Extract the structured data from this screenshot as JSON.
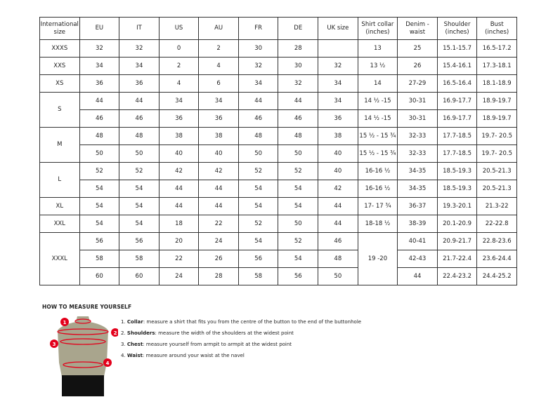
{
  "table": {
    "headers": [
      "International size",
      "EU",
      "IT",
      "US",
      "AU",
      "FR",
      "DE",
      "UK size",
      "Shirt collar (inches)",
      "Denim - waist",
      "Shoulder (inches)",
      "Bust (inches)"
    ],
    "rows": [
      {
        "size": "XXXS",
        "cells": [
          "32",
          "32",
          "0",
          "2",
          "30",
          "28",
          ""
        ],
        "collar": "13",
        "rest": [
          "25",
          "15.1-15.7",
          "16.5-17.2"
        ]
      },
      {
        "size": "XXS",
        "cells": [
          "34",
          "34",
          "2",
          "4",
          "32",
          "30",
          "32"
        ],
        "collar": "13 ½",
        "rest": [
          "26",
          "15.4-16.1",
          "17.3-18.1"
        ]
      },
      {
        "size": "XS",
        "cells": [
          "36",
          "36",
          "4",
          "6",
          "34",
          "32",
          "34"
        ],
        "collar": "14",
        "rest": [
          "27-29",
          "16.5-16.4",
          "18.1-18.9"
        ]
      },
      {
        "size": "S",
        "cells": [
          "44",
          "44",
          "34",
          "34",
          "44",
          "44",
          "34"
        ],
        "collar": "14 ½ -15",
        "rest": [
          "30-31",
          "16.9-17.7",
          "18.9-19.7"
        ]
      },
      {
        "cells": [
          "46",
          "46",
          "36",
          "36",
          "46",
          "46",
          "36"
        ],
        "collar": "14 ½ -15",
        "rest": [
          "30-31",
          "16.9-17.7",
          "18.9-19.7"
        ]
      },
      {
        "size": "M",
        "cells": [
          "48",
          "48",
          "38",
          "38",
          "48",
          "48",
          "38"
        ],
        "collar": "15 ½ - 15 ¾",
        "rest": [
          "32-33",
          "17.7-18.5",
          "19.7- 20.5"
        ]
      },
      {
        "cells": [
          "50",
          "50",
          "40",
          "40",
          "50",
          "50",
          "40"
        ],
        "collar": "15 ½ - 15 ¾",
        "rest": [
          "32-33",
          "17.7-18.5",
          "19.7- 20.5"
        ]
      },
      {
        "size": "L",
        "cells": [
          "52",
          "52",
          "42",
          "42",
          "52",
          "52",
          "40"
        ],
        "collar": "16-16 ½",
        "rest": [
          "34-35",
          "18.5-19.3",
          "20.5-21.3"
        ]
      },
      {
        "cells": [
          "54",
          "54",
          "44",
          "44",
          "54",
          "54",
          "42"
        ],
        "collar": "16-16 ½",
        "rest": [
          "34-35",
          "18.5-19.3",
          "20.5-21.3"
        ]
      },
      {
        "size": "XL",
        "cells": [
          "54",
          "54",
          "44",
          "44",
          "54",
          "54",
          "44"
        ],
        "collar": "17- 17 ¾",
        "rest": [
          "36-37",
          "19.3-20.1",
          "21.3-22"
        ]
      },
      {
        "size": "XXL",
        "cells": [
          "54",
          "54",
          "18",
          "22",
          "52",
          "50",
          "44"
        ],
        "collar": "18-18 ½",
        "rest": [
          "38-39",
          "20.1-20.9",
          "22-22.8"
        ]
      },
      {
        "size": "XXXL",
        "cells": [
          "56",
          "56",
          "20",
          "24",
          "54",
          "52",
          "46"
        ],
        "collar": "19 -20",
        "rest": [
          "40-41",
          "20.9-21.7",
          "22.8-23.6"
        ]
      },
      {
        "cells": [
          "58",
          "58",
          "22",
          "26",
          "56",
          "54",
          "48"
        ],
        "rest": [
          "42-43",
          "21.7-22.4",
          "23.6-24.4"
        ]
      },
      {
        "cells": [
          "60",
          "60",
          "24",
          "28",
          "58",
          "56",
          "50"
        ],
        "rest": [
          "44",
          "22.4-23.2",
          "24.4-25.2"
        ]
      }
    ]
  },
  "guide": {
    "title": "HOW TO MEASURE YOURSELF",
    "items": [
      {
        "num": "1.",
        "term": "Collar",
        "text": ": measure a shirt that fits you from the centre of the button to the end of the buttonhole"
      },
      {
        "num": "2.",
        "term": "Shoulders",
        "text": ": measure the width of the shoulders at the widest point"
      },
      {
        "num": "3.",
        "term": "Chest",
        "text": ": measure yourself from armpit to armpit at the widest point"
      },
      {
        "num": "4.",
        "term": "Waist",
        "text": ": measure around your waist at the navel"
      }
    ],
    "markers": [
      "1",
      "2",
      "3",
      "4"
    ],
    "accent": "#e3001b"
  }
}
